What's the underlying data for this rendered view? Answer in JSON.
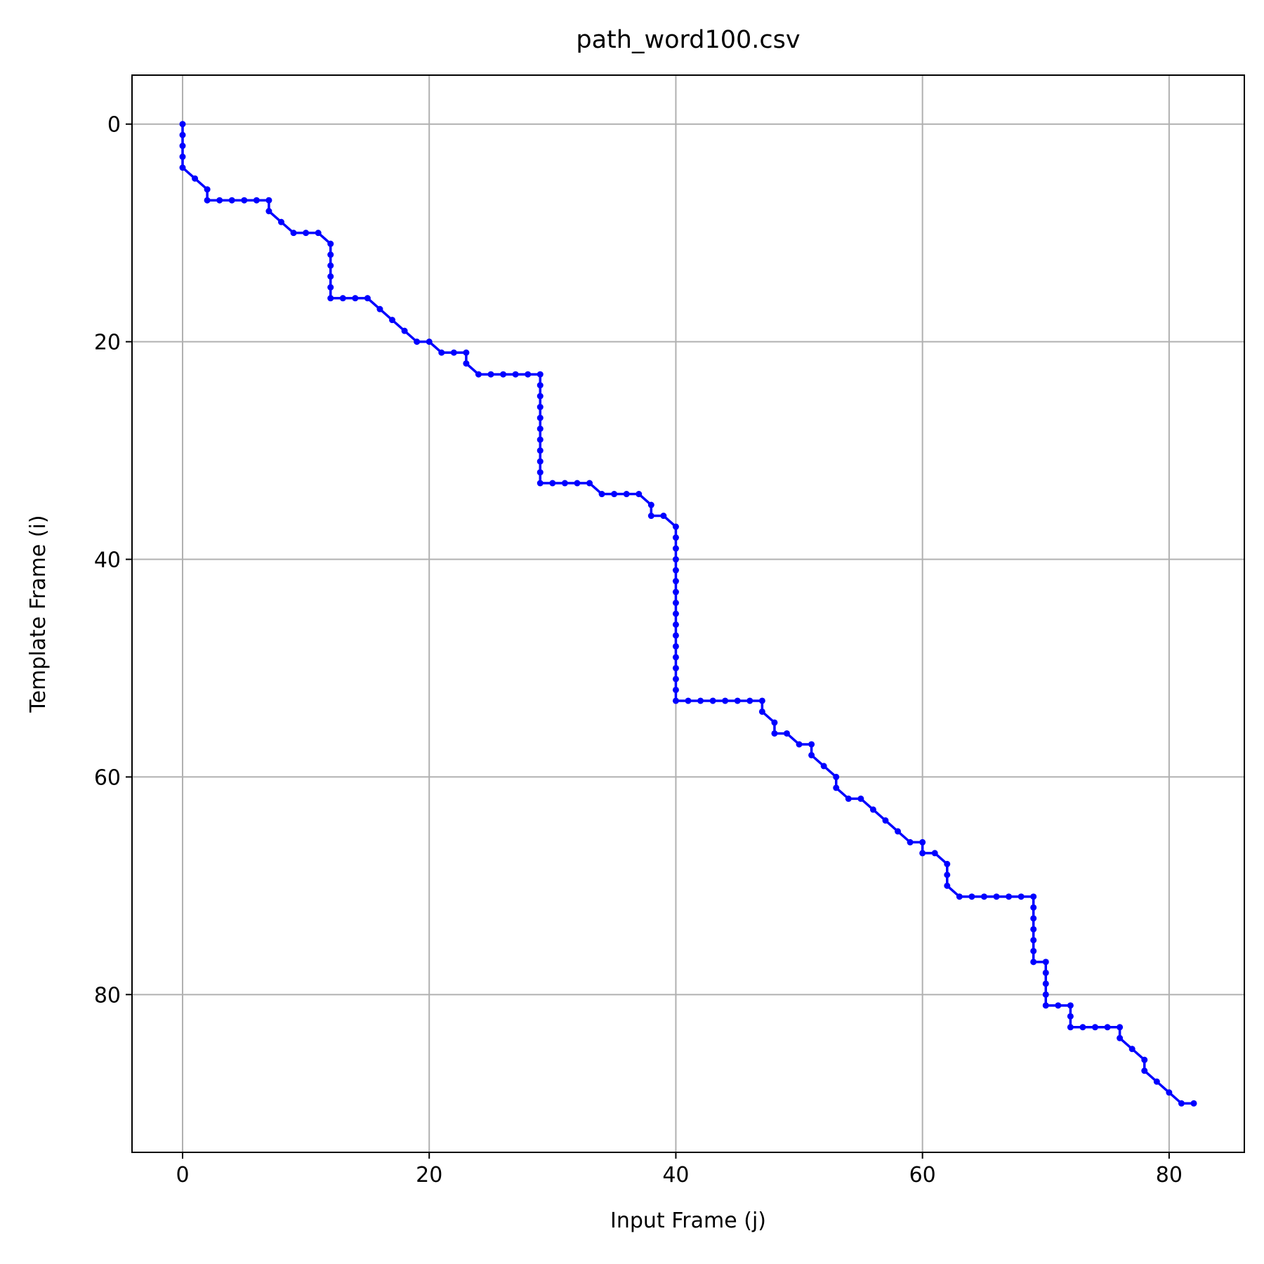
{
  "chart_data": {
    "type": "line",
    "title": "path_word100.csv",
    "x_label": "Input Frame (j)",
    "y_label": "Template Frame (i)",
    "color": "#0000ff",
    "grid": true,
    "y_inverted": true,
    "markers": true,
    "xlim": [
      -4.1,
      86.1
    ],
    "ylim": [
      94.5,
      -4.5
    ],
    "xticks": [
      0,
      20,
      40,
      60,
      80
    ],
    "yticks": [
      0,
      20,
      40,
      60,
      80
    ],
    "x": [
      0,
      0,
      0,
      0,
      0,
      1,
      2,
      2,
      3,
      4,
      5,
      6,
      7,
      7,
      8,
      9,
      10,
      11,
      12,
      12,
      12,
      12,
      12,
      12,
      13,
      14,
      15,
      16,
      17,
      18,
      19,
      20,
      21,
      22,
      23,
      23,
      24,
      25,
      26,
      27,
      28,
      29,
      29,
      29,
      29,
      29,
      29,
      29,
      29,
      29,
      29,
      29,
      30,
      31,
      32,
      33,
      34,
      35,
      36,
      37,
      38,
      38,
      39,
      40,
      40,
      40,
      40,
      40,
      40,
      40,
      40,
      40,
      40,
      40,
      40,
      40,
      40,
      40,
      40,
      40,
      41,
      42,
      43,
      44,
      45,
      46,
      47,
      47,
      48,
      48,
      49,
      50,
      51,
      51,
      52,
      53,
      53,
      54,
      55,
      56,
      57,
      58,
      59,
      60,
      60,
      61,
      62,
      62,
      62,
      63,
      64,
      65,
      66,
      67,
      68,
      69,
      69,
      69,
      69,
      69,
      69,
      69,
      70,
      70,
      70,
      70,
      70,
      71,
      72,
      72,
      72,
      73,
      74,
      75,
      76,
      76,
      77,
      78,
      78,
      79,
      80,
      81,
      82
    ],
    "values": [
      0,
      1,
      2,
      3,
      4,
      5,
      6,
      7,
      7,
      7,
      7,
      7,
      7,
      8,
      9,
      10,
      10,
      10,
      11,
      12,
      13,
      14,
      15,
      16,
      16,
      16,
      16,
      17,
      18,
      19,
      20,
      20,
      21,
      21,
      21,
      22,
      23,
      23,
      23,
      23,
      23,
      23,
      24,
      25,
      26,
      27,
      28,
      29,
      30,
      31,
      32,
      33,
      33,
      33,
      33,
      33,
      34,
      34,
      34,
      34,
      35,
      36,
      36,
      37,
      38,
      39,
      40,
      41,
      42,
      43,
      44,
      45,
      46,
      47,
      48,
      49,
      50,
      51,
      52,
      53,
      53,
      53,
      53,
      53,
      53,
      53,
      53,
      54,
      55,
      56,
      56,
      57,
      57,
      58,
      59,
      60,
      61,
      62,
      62,
      63,
      64,
      65,
      66,
      66,
      67,
      67,
      68,
      69,
      70,
      71,
      71,
      71,
      71,
      71,
      71,
      71,
      72,
      73,
      74,
      75,
      76,
      77,
      77,
      78,
      79,
      80,
      81,
      81,
      81,
      82,
      83,
      83,
      83,
      83,
      83,
      84,
      85,
      86,
      87,
      88,
      89,
      90,
      90
    ]
  }
}
